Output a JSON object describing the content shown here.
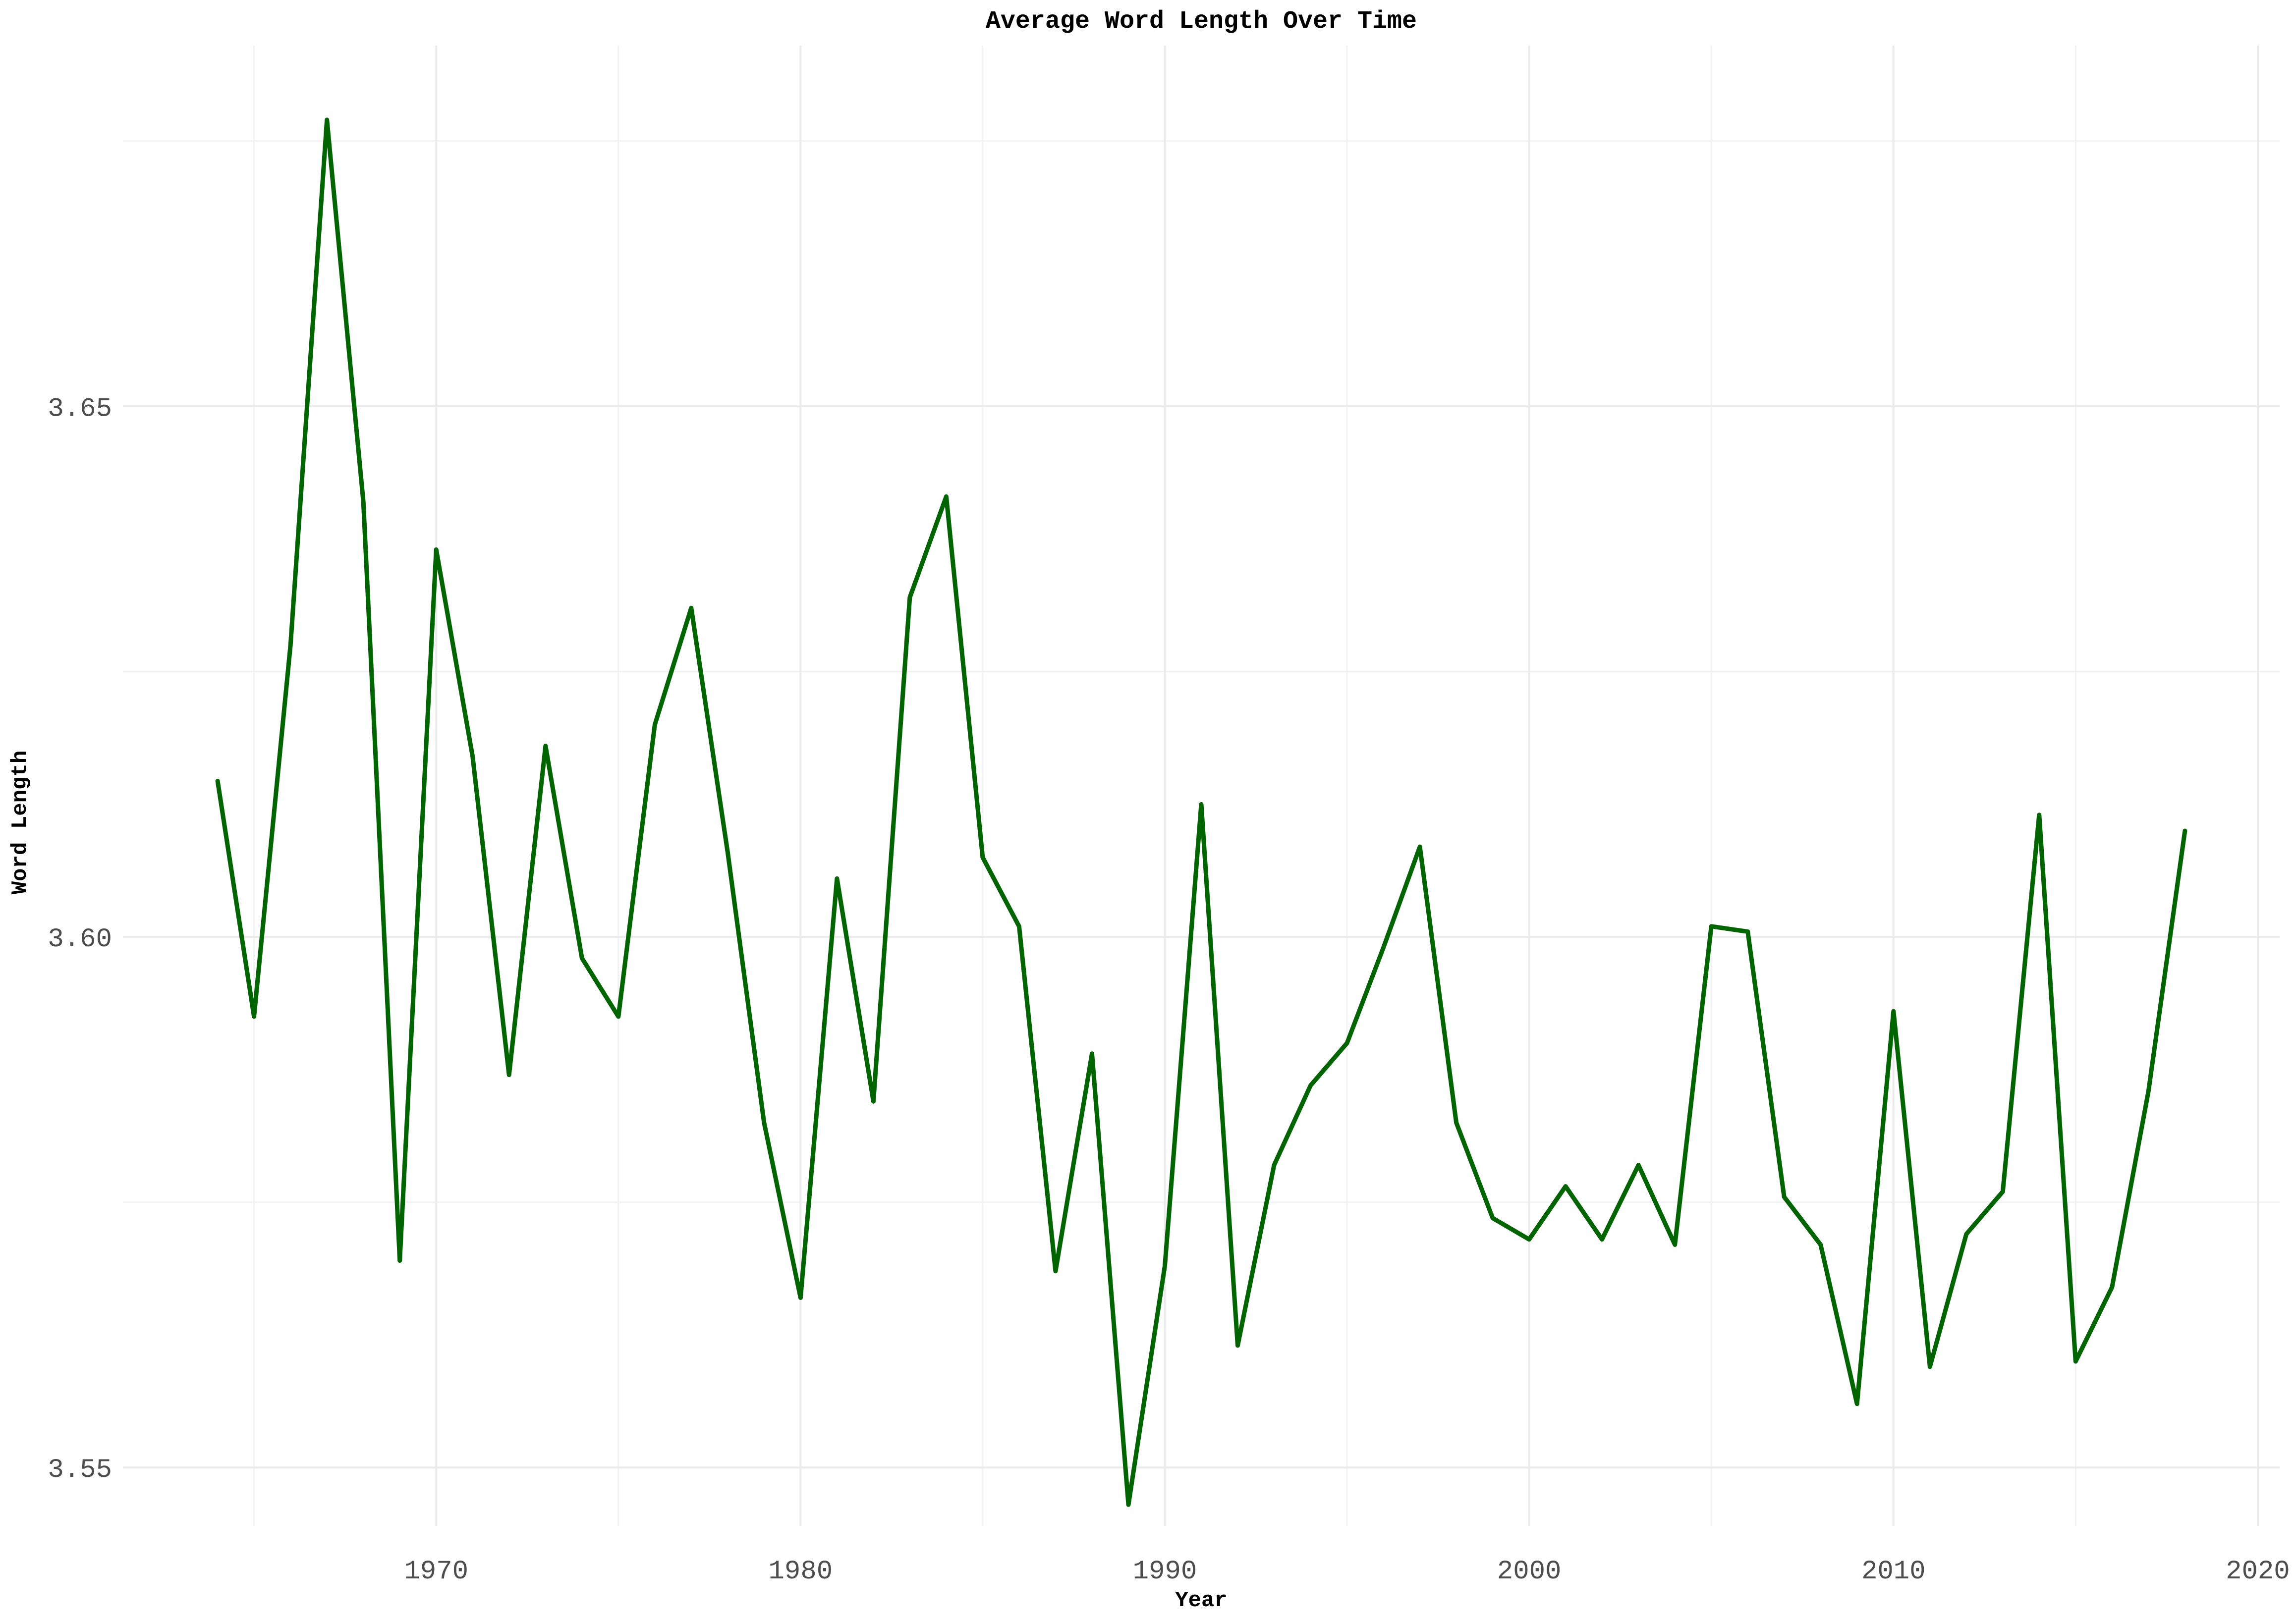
{
  "chart_data": {
    "type": "line",
    "title": "Average Word Length Over Time",
    "xlabel": "Year",
    "ylabel": "Word Length",
    "xlim": [
      1961.4,
      2020.6
    ],
    "ylim": [
      3.5445,
      3.684
    ],
    "x_ticks": [
      1970,
      1980,
      1990,
      2000,
      2010,
      2020
    ],
    "x_tick_labels": [
      "1970",
      "1980",
      "1990",
      "2000",
      "2010",
      "2020"
    ],
    "y_ticks": [
      3.55,
      3.6,
      3.65
    ],
    "y_tick_labels": [
      "3.55",
      "3.60",
      "3.65"
    ],
    "grid": true,
    "legend": "none",
    "line_color": "#006400",
    "series": [
      {
        "x": [
          1964,
          1965,
          1966,
          1967,
          1968,
          1969,
          1970,
          1971,
          1972,
          1973,
          1974,
          1975,
          1976,
          1977,
          1978,
          1979,
          1980,
          1981,
          1982,
          1983,
          1984,
          1985,
          1986,
          1987,
          1988,
          1989,
          1990,
          1991,
          1992,
          1993,
          1994,
          1995,
          1996,
          1997,
          1998,
          1999,
          2000,
          2001,
          2002,
          2003,
          2004,
          2005,
          2006,
          2007,
          2008,
          2009,
          2010,
          2011,
          2012,
          2013,
          2014,
          2015,
          2016,
          2017,
          2018
        ],
        "values": [
          3.6147,
          3.5925,
          3.6275,
          3.677,
          3.641,
          3.5695,
          3.6365,
          3.617,
          3.587,
          3.618,
          3.598,
          3.5925,
          3.62,
          3.631,
          3.608,
          3.5825,
          3.566,
          3.6055,
          3.5845,
          3.632,
          3.6415,
          3.6075,
          3.601,
          3.5685,
          3.589,
          3.5465,
          3.569,
          3.6125,
          3.5615,
          3.5785,
          3.586,
          3.59,
          3.599,
          3.6085,
          3.5825,
          3.5735,
          3.5715,
          3.5765,
          3.5715,
          3.5785,
          3.571,
          3.601,
          3.6005,
          3.5755,
          3.571,
          3.556,
          3.593,
          3.5595,
          3.572,
          3.576,
          3.6115,
          3.56,
          3.567,
          3.5855,
          3.61
        ]
      }
    ]
  }
}
